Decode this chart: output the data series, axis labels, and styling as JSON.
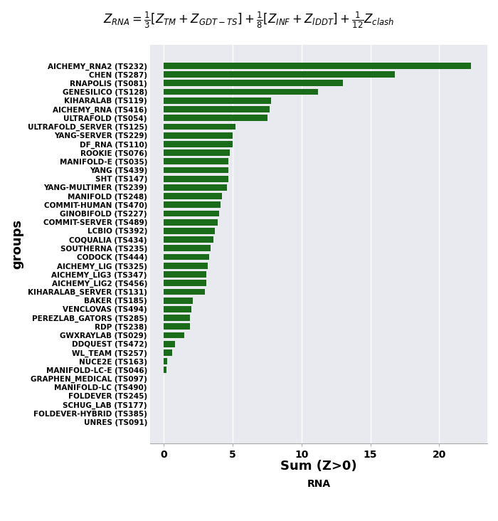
{
  "title_formula": "$Z_{RNA} = \\frac{1}{3}[Z_{TM} + Z_{GDT-TS}] + \\frac{1}{8}[Z_{INF} + Z_{lDDT}] + \\frac{1}{12}Z_{clash}$",
  "xlabel": "Sum (Z>0)",
  "ylabel": "groups",
  "xlabel2": "RNA",
  "bar_color": "#1a6b1a",
  "background_color": "#e8eaf0",
  "fig_background": "#ffffff",
  "groups": [
    "AICHEMY_RNA2 (TS232)",
    "CHEN (TS287)",
    "RNAPOLIS (TS081)",
    "GENESILICO (TS128)",
    "KIHARALAB (TS119)",
    "AICHEMY_RNA (TS416)",
    "ULTRAFOLD (TS054)",
    "ULTRAFOLD_SERVER (TS125)",
    "YANG-SERVER (TS229)",
    "DF_RNA (TS110)",
    "ROOKIE (TS076)",
    "MANIFOLD-E (TS035)",
    "YANG (TS439)",
    "SHT (TS147)",
    "YANG-MULTIMER (TS239)",
    "MANIFOLD (TS248)",
    "COMMIT-HUMAN (TS470)",
    "GINOBIFOLD (TS227)",
    "COMMIT-SERVER (TS489)",
    "LCBIO (TS392)",
    "COQUALIA (TS434)",
    "SOUTHERNA (TS235)",
    "CODOCK (TS444)",
    "AICHEMY_LIG (TS325)",
    "AICHEMY_LIG3 (TS347)",
    "AICHEMY_LIG2 (TS456)",
    "KIHARALAB_SERVER (TS131)",
    "BAKER (TS185)",
    "VENCLOVAS (TS494)",
    "PEREZLAB_GATORS (TS285)",
    "RDP (TS238)",
    "GWXRAYLAB (TS029)",
    "DDQUEST (TS472)",
    "WL_TEAM (TS257)",
    "NUCE2E (TS163)",
    "MANIFOLD-LC-E (TS046)",
    "GRAPHEN_MEDICAL (TS097)",
    "MANIFOLD-LC (TS490)",
    "FOLDEVER (TS245)",
    "SCHUG_LAB (TS177)",
    "FOLDEVER-HYBRID (TS385)",
    "UNRES (TS091)"
  ],
  "values": [
    22.3,
    16.8,
    13.0,
    11.2,
    7.8,
    7.7,
    7.5,
    5.2,
    5.0,
    5.0,
    4.8,
    4.7,
    4.7,
    4.7,
    4.6,
    4.2,
    4.1,
    4.0,
    3.9,
    3.7,
    3.6,
    3.4,
    3.3,
    3.2,
    3.1,
    3.1,
    3.0,
    2.1,
    2.0,
    1.9,
    1.9,
    1.5,
    0.8,
    0.6,
    0.22,
    0.18,
    0.0,
    0.0,
    0.0,
    0.0,
    0.0,
    0.0
  ],
  "xlim": [
    -1.0,
    23.5
  ],
  "xticks": [
    0,
    5,
    10,
    15,
    20
  ],
  "fontsize_labels": 7.5,
  "fontsize_axis_label": 13,
  "fontsize_xtick": 10,
  "bar_height": 0.72
}
